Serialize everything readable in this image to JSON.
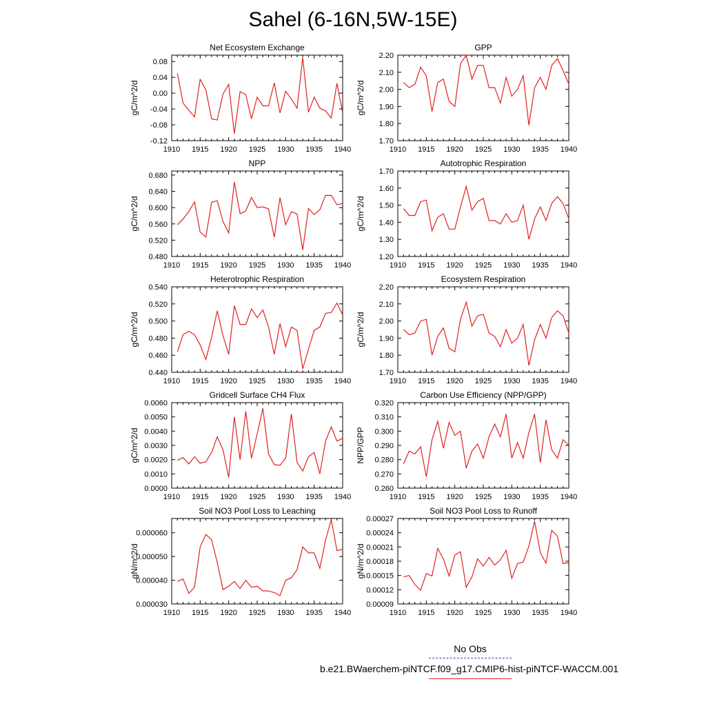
{
  "page_title": "Sahel (6-16N,5W-15E)",
  "legend": {
    "obs_label": "No Obs",
    "obs_color": "#3a3ad0",
    "model_label": "b.e21.BWaerchem-piNTCF.f09_g17.CMIP6-hist-piNTCF-WACCM.001",
    "model_color": "#e02020"
  },
  "chart_data": [
    {
      "type": "line",
      "title": "Net Ecosystem Exchange",
      "ylabel": "gC/m^2/d",
      "xlim": [
        1910,
        1940
      ],
      "ylim": [
        -0.12,
        0.096
      ],
      "xticks": [
        1910,
        1915,
        1920,
        1925,
        1930,
        1935,
        1940
      ],
      "yticks": [
        "-0.12",
        "-0.08",
        "-0.04",
        "0.00",
        "0.04",
        "0.08"
      ],
      "series": [
        {
          "x": [
            1911,
            1912,
            1913,
            1914,
            1915,
            1916,
            1917,
            1918,
            1919,
            1920,
            1921,
            1922,
            1923,
            1924,
            1925,
            1926,
            1927,
            1928,
            1929,
            1930,
            1931,
            1932,
            1933,
            1934,
            1935,
            1936,
            1937,
            1938,
            1939,
            1940
          ],
          "values": [
            0.05,
            -0.025,
            -0.043,
            -0.06,
            0.035,
            0.008,
            -0.065,
            -0.068,
            -0.002,
            0.022,
            -0.102,
            0.004,
            -0.004,
            -0.065,
            -0.01,
            -0.032,
            -0.032,
            0.026,
            -0.05,
            0.005,
            -0.015,
            -0.038,
            0.09,
            -0.048,
            -0.01,
            -0.038,
            -0.045,
            -0.063,
            0.025,
            -0.05
          ]
        }
      ]
    },
    {
      "type": "line",
      "title": "GPP",
      "ylabel": "gC/m^2/d",
      "xlim": [
        1910,
        1940
      ],
      "ylim": [
        1.7,
        2.2
      ],
      "xticks": [
        1910,
        1915,
        1920,
        1925,
        1930,
        1935,
        1940
      ],
      "yticks": [
        "1.70",
        "1.80",
        "1.90",
        "2.00",
        "2.10",
        "2.20"
      ],
      "series": [
        {
          "x": [
            1911,
            1912,
            1913,
            1914,
            1915,
            1916,
            1917,
            1918,
            1919,
            1920,
            1921,
            1922,
            1923,
            1924,
            1925,
            1926,
            1927,
            1928,
            1929,
            1930,
            1931,
            1932,
            1933,
            1934,
            1935,
            1936,
            1937,
            1938,
            1939,
            1940
          ],
          "values": [
            2.04,
            2.01,
            2.03,
            2.13,
            2.08,
            1.87,
            2.04,
            2.06,
            1.93,
            1.9,
            2.15,
            2.2,
            2.06,
            2.14,
            2.14,
            2.01,
            2.01,
            1.92,
            2.07,
            1.96,
            2.0,
            2.08,
            1.79,
            2.01,
            2.07,
            2.0,
            2.14,
            2.18,
            2.11,
            2.03
          ]
        }
      ]
    },
    {
      "type": "line",
      "title": "NPP",
      "ylabel": "gC/m^2/d",
      "xlim": [
        1910,
        1940
      ],
      "ylim": [
        0.48,
        0.69
      ],
      "xticks": [
        1910,
        1915,
        1920,
        1925,
        1930,
        1935,
        1940
      ],
      "yticks": [
        "0.480",
        "0.520",
        "0.560",
        "0.600",
        "0.640",
        "0.680"
      ],
      "series": [
        {
          "x": [
            1911,
            1912,
            1913,
            1914,
            1915,
            1916,
            1917,
            1918,
            1919,
            1920,
            1921,
            1922,
            1923,
            1924,
            1925,
            1926,
            1927,
            1928,
            1929,
            1930,
            1931,
            1932,
            1933,
            1934,
            1935,
            1936,
            1937,
            1938,
            1939,
            1940
          ],
          "values": [
            0.558,
            0.572,
            0.59,
            0.614,
            0.54,
            0.528,
            0.613,
            0.617,
            0.566,
            0.538,
            0.663,
            0.585,
            0.592,
            0.625,
            0.6,
            0.602,
            0.597,
            0.527,
            0.625,
            0.558,
            0.59,
            0.584,
            0.496,
            0.598,
            0.583,
            0.595,
            0.63,
            0.63,
            0.607,
            0.61
          ]
        }
      ]
    },
    {
      "type": "line",
      "title": "Autotrophic Respiration",
      "ylabel": "gC/m^2/d",
      "xlim": [
        1910,
        1940
      ],
      "ylim": [
        1.2,
        1.7
      ],
      "xticks": [
        1910,
        1915,
        1920,
        1925,
        1930,
        1935,
        1940
      ],
      "yticks": [
        "1.20",
        "1.30",
        "1.40",
        "1.50",
        "1.60",
        "1.70"
      ],
      "series": [
        {
          "x": [
            1911,
            1912,
            1913,
            1914,
            1915,
            1916,
            1917,
            1918,
            1919,
            1920,
            1921,
            1922,
            1923,
            1924,
            1925,
            1926,
            1927,
            1928,
            1929,
            1930,
            1931,
            1932,
            1933,
            1934,
            1935,
            1936,
            1937,
            1938,
            1939,
            1940
          ],
          "values": [
            1.48,
            1.44,
            1.44,
            1.52,
            1.53,
            1.35,
            1.43,
            1.45,
            1.36,
            1.36,
            1.49,
            1.61,
            1.47,
            1.52,
            1.54,
            1.41,
            1.41,
            1.39,
            1.45,
            1.4,
            1.41,
            1.5,
            1.3,
            1.42,
            1.49,
            1.41,
            1.51,
            1.55,
            1.51,
            1.42
          ]
        }
      ]
    },
    {
      "type": "line",
      "title": "Heterotrophic Respiration",
      "ylabel": "gC/m^2/d",
      "xlim": [
        1910,
        1940
      ],
      "ylim": [
        0.44,
        0.54
      ],
      "xticks": [
        1910,
        1915,
        1920,
        1925,
        1930,
        1935,
        1940
      ],
      "yticks": [
        "0.440",
        "0.460",
        "0.480",
        "0.500",
        "0.520",
        "0.540"
      ],
      "series": [
        {
          "x": [
            1911,
            1912,
            1913,
            1914,
            1915,
            1916,
            1917,
            1918,
            1919,
            1920,
            1921,
            1922,
            1923,
            1924,
            1925,
            1926,
            1927,
            1928,
            1929,
            1930,
            1931,
            1932,
            1933,
            1934,
            1935,
            1936,
            1937,
            1938,
            1939,
            1940
          ],
          "values": [
            0.464,
            0.484,
            0.488,
            0.484,
            0.472,
            0.455,
            0.481,
            0.512,
            0.483,
            0.461,
            0.518,
            0.496,
            0.496,
            0.514,
            0.504,
            0.513,
            0.493,
            0.461,
            0.497,
            0.47,
            0.493,
            0.489,
            0.444,
            0.467,
            0.489,
            0.493,
            0.509,
            0.51,
            0.521,
            0.507
          ]
        }
      ]
    },
    {
      "type": "line",
      "title": "Ecosystem Respiration",
      "ylabel": "gC/m^2/d",
      "xlim": [
        1910,
        1940
      ],
      "ylim": [
        1.7,
        2.2
      ],
      "xticks": [
        1910,
        1915,
        1920,
        1925,
        1930,
        1935,
        1940
      ],
      "yticks": [
        "1.70",
        "1.80",
        "1.90",
        "2.00",
        "2.10",
        "2.20"
      ],
      "series": [
        {
          "x": [
            1911,
            1912,
            1913,
            1914,
            1915,
            1916,
            1917,
            1918,
            1919,
            1920,
            1921,
            1922,
            1923,
            1924,
            1925,
            1926,
            1927,
            1928,
            1929,
            1930,
            1931,
            1932,
            1933,
            1934,
            1935,
            1936,
            1937,
            1938,
            1939,
            1940
          ],
          "values": [
            1.95,
            1.92,
            1.93,
            2.0,
            2.01,
            1.8,
            1.91,
            1.96,
            1.84,
            1.82,
            2.01,
            2.11,
            1.97,
            2.03,
            2.04,
            1.93,
            1.91,
            1.85,
            1.95,
            1.87,
            1.9,
            1.98,
            1.74,
            1.89,
            1.98,
            1.9,
            2.02,
            2.06,
            2.03,
            1.93
          ]
        }
      ]
    },
    {
      "type": "line",
      "title": "Gridcell Surface CH4 Flux",
      "ylabel": "gC/m^2/d",
      "xlim": [
        1910,
        1940
      ],
      "ylim": [
        0.0,
        0.006
      ],
      "xticks": [
        1910,
        1915,
        1920,
        1925,
        1930,
        1935,
        1940
      ],
      "yticks": [
        "0.0000",
        "0.0010",
        "0.0020",
        "0.0030",
        "0.0040",
        "0.0050",
        "0.0060"
      ],
      "series": [
        {
          "x": [
            1911,
            1912,
            1913,
            1914,
            1915,
            1916,
            1917,
            1918,
            1919,
            1920,
            1921,
            1922,
            1923,
            1924,
            1925,
            1926,
            1927,
            1928,
            1929,
            1930,
            1931,
            1932,
            1933,
            1934,
            1935,
            1936,
            1937,
            1938,
            1939,
            1940
          ],
          "values": [
            0.00195,
            0.00215,
            0.0017,
            0.0022,
            0.00175,
            0.00185,
            0.0025,
            0.0036,
            0.0027,
            0.00075,
            0.005,
            0.002,
            0.0054,
            0.0021,
            0.0038,
            0.0056,
            0.0024,
            0.00165,
            0.0016,
            0.0021,
            0.0052,
            0.0018,
            0.0012,
            0.0022,
            0.0025,
            0.001,
            0.0033,
            0.0043,
            0.0033,
            0.0035
          ]
        }
      ]
    },
    {
      "type": "line",
      "title": "Carbon Use Efficiency (NPP/GPP)",
      "ylabel": "NPP/GPP",
      "xlim": [
        1910,
        1940
      ],
      "ylim": [
        0.26,
        0.32
      ],
      "xticks": [
        1910,
        1915,
        1920,
        1925,
        1930,
        1935,
        1940
      ],
      "yticks": [
        "0.260",
        "0.270",
        "0.280",
        "0.290",
        "0.300",
        "0.310",
        "0.320"
      ],
      "series": [
        {
          "x": [
            1911,
            1912,
            1913,
            1914,
            1915,
            1916,
            1917,
            1918,
            1919,
            1920,
            1921,
            1922,
            1923,
            1924,
            1925,
            1926,
            1927,
            1928,
            1929,
            1930,
            1931,
            1932,
            1933,
            1934,
            1935,
            1936,
            1937,
            1938,
            1939,
            1940
          ],
          "values": [
            0.277,
            0.286,
            0.284,
            0.289,
            0.268,
            0.294,
            0.307,
            0.288,
            0.306,
            0.297,
            0.3,
            0.274,
            0.286,
            0.291,
            0.281,
            0.296,
            0.305,
            0.296,
            0.312,
            0.281,
            0.292,
            0.281,
            0.299,
            0.312,
            0.278,
            0.308,
            0.287,
            0.281,
            0.294,
            0.29
          ]
        }
      ]
    },
    {
      "type": "line",
      "title": "Soil NO3 Pool Loss to Leaching",
      "ylabel": "gN/m^2/d",
      "xlim": [
        1910,
        1940
      ],
      "ylim": [
        3e-05,
        6.6e-05
      ],
      "xticks": [
        1910,
        1915,
        1920,
        1925,
        1930,
        1935,
        1940
      ],
      "yticks": [
        "0.000030",
        "0.000040",
        "0.000050",
        "0.000060"
      ],
      "series": [
        {
          "x": [
            1911,
            1912,
            1913,
            1914,
            1915,
            1916,
            1917,
            1918,
            1919,
            1920,
            1921,
            1922,
            1923,
            1924,
            1925,
            1926,
            1927,
            1928,
            1929,
            1930,
            1931,
            1932,
            1933,
            1934,
            1935,
            1936,
            1937,
            1938,
            1939,
            1940
          ],
          "values": [
            3.95e-05,
            4.05e-05,
            3.45e-05,
            3.7e-05,
            5.4e-05,
            5.93e-05,
            5.7e-05,
            4.75e-05,
            3.6e-05,
            3.75e-05,
            3.95e-05,
            3.65e-05,
            4e-05,
            3.7e-05,
            3.75e-05,
            3.55e-05,
            3.55e-05,
            3.48e-05,
            3.35e-05,
            4e-05,
            4.1e-05,
            4.45e-05,
            5.4e-05,
            5.15e-05,
            5.15e-05,
            4.5e-05,
            5.7e-05,
            6.55e-05,
            5.25e-05,
            5.3e-05
          ]
        }
      ]
    },
    {
      "type": "line",
      "title": "Soil NO3 Pool Loss to Runoff",
      "ylabel": "gN/m^2/d",
      "xlim": [
        1910,
        1940
      ],
      "ylim": [
        9e-05,
        0.00027
      ],
      "xticks": [
        1910,
        1915,
        1920,
        1925,
        1930,
        1935,
        1940
      ],
      "yticks": [
        "0.00009",
        "0.00012",
        "0.00015",
        "0.00018",
        "0.00021",
        "0.00024",
        "0.00027"
      ],
      "series": [
        {
          "x": [
            1911,
            1912,
            1913,
            1914,
            1915,
            1916,
            1917,
            1918,
            1919,
            1920,
            1921,
            1922,
            1923,
            1924,
            1925,
            1926,
            1927,
            1928,
            1929,
            1930,
            1931,
            1932,
            1933,
            1934,
            1935,
            1936,
            1937,
            1938,
            1939,
            1940
          ],
          "values": [
            0.000147,
            0.00015,
            0.000131,
            0.000119,
            0.000154,
            0.000149,
            0.000207,
            0.000185,
            0.000149,
            0.000193,
            0.0002,
            0.000125,
            0.000147,
            0.000185,
            0.00017,
            0.000188,
            0.000172,
            0.000183,
            0.000203,
            0.000144,
            0.000175,
            0.000178,
            0.000212,
            0.000264,
            0.000198,
            0.000176,
            0.000245,
            0.000233,
            0.000175,
            0.000177
          ]
        }
      ]
    }
  ]
}
